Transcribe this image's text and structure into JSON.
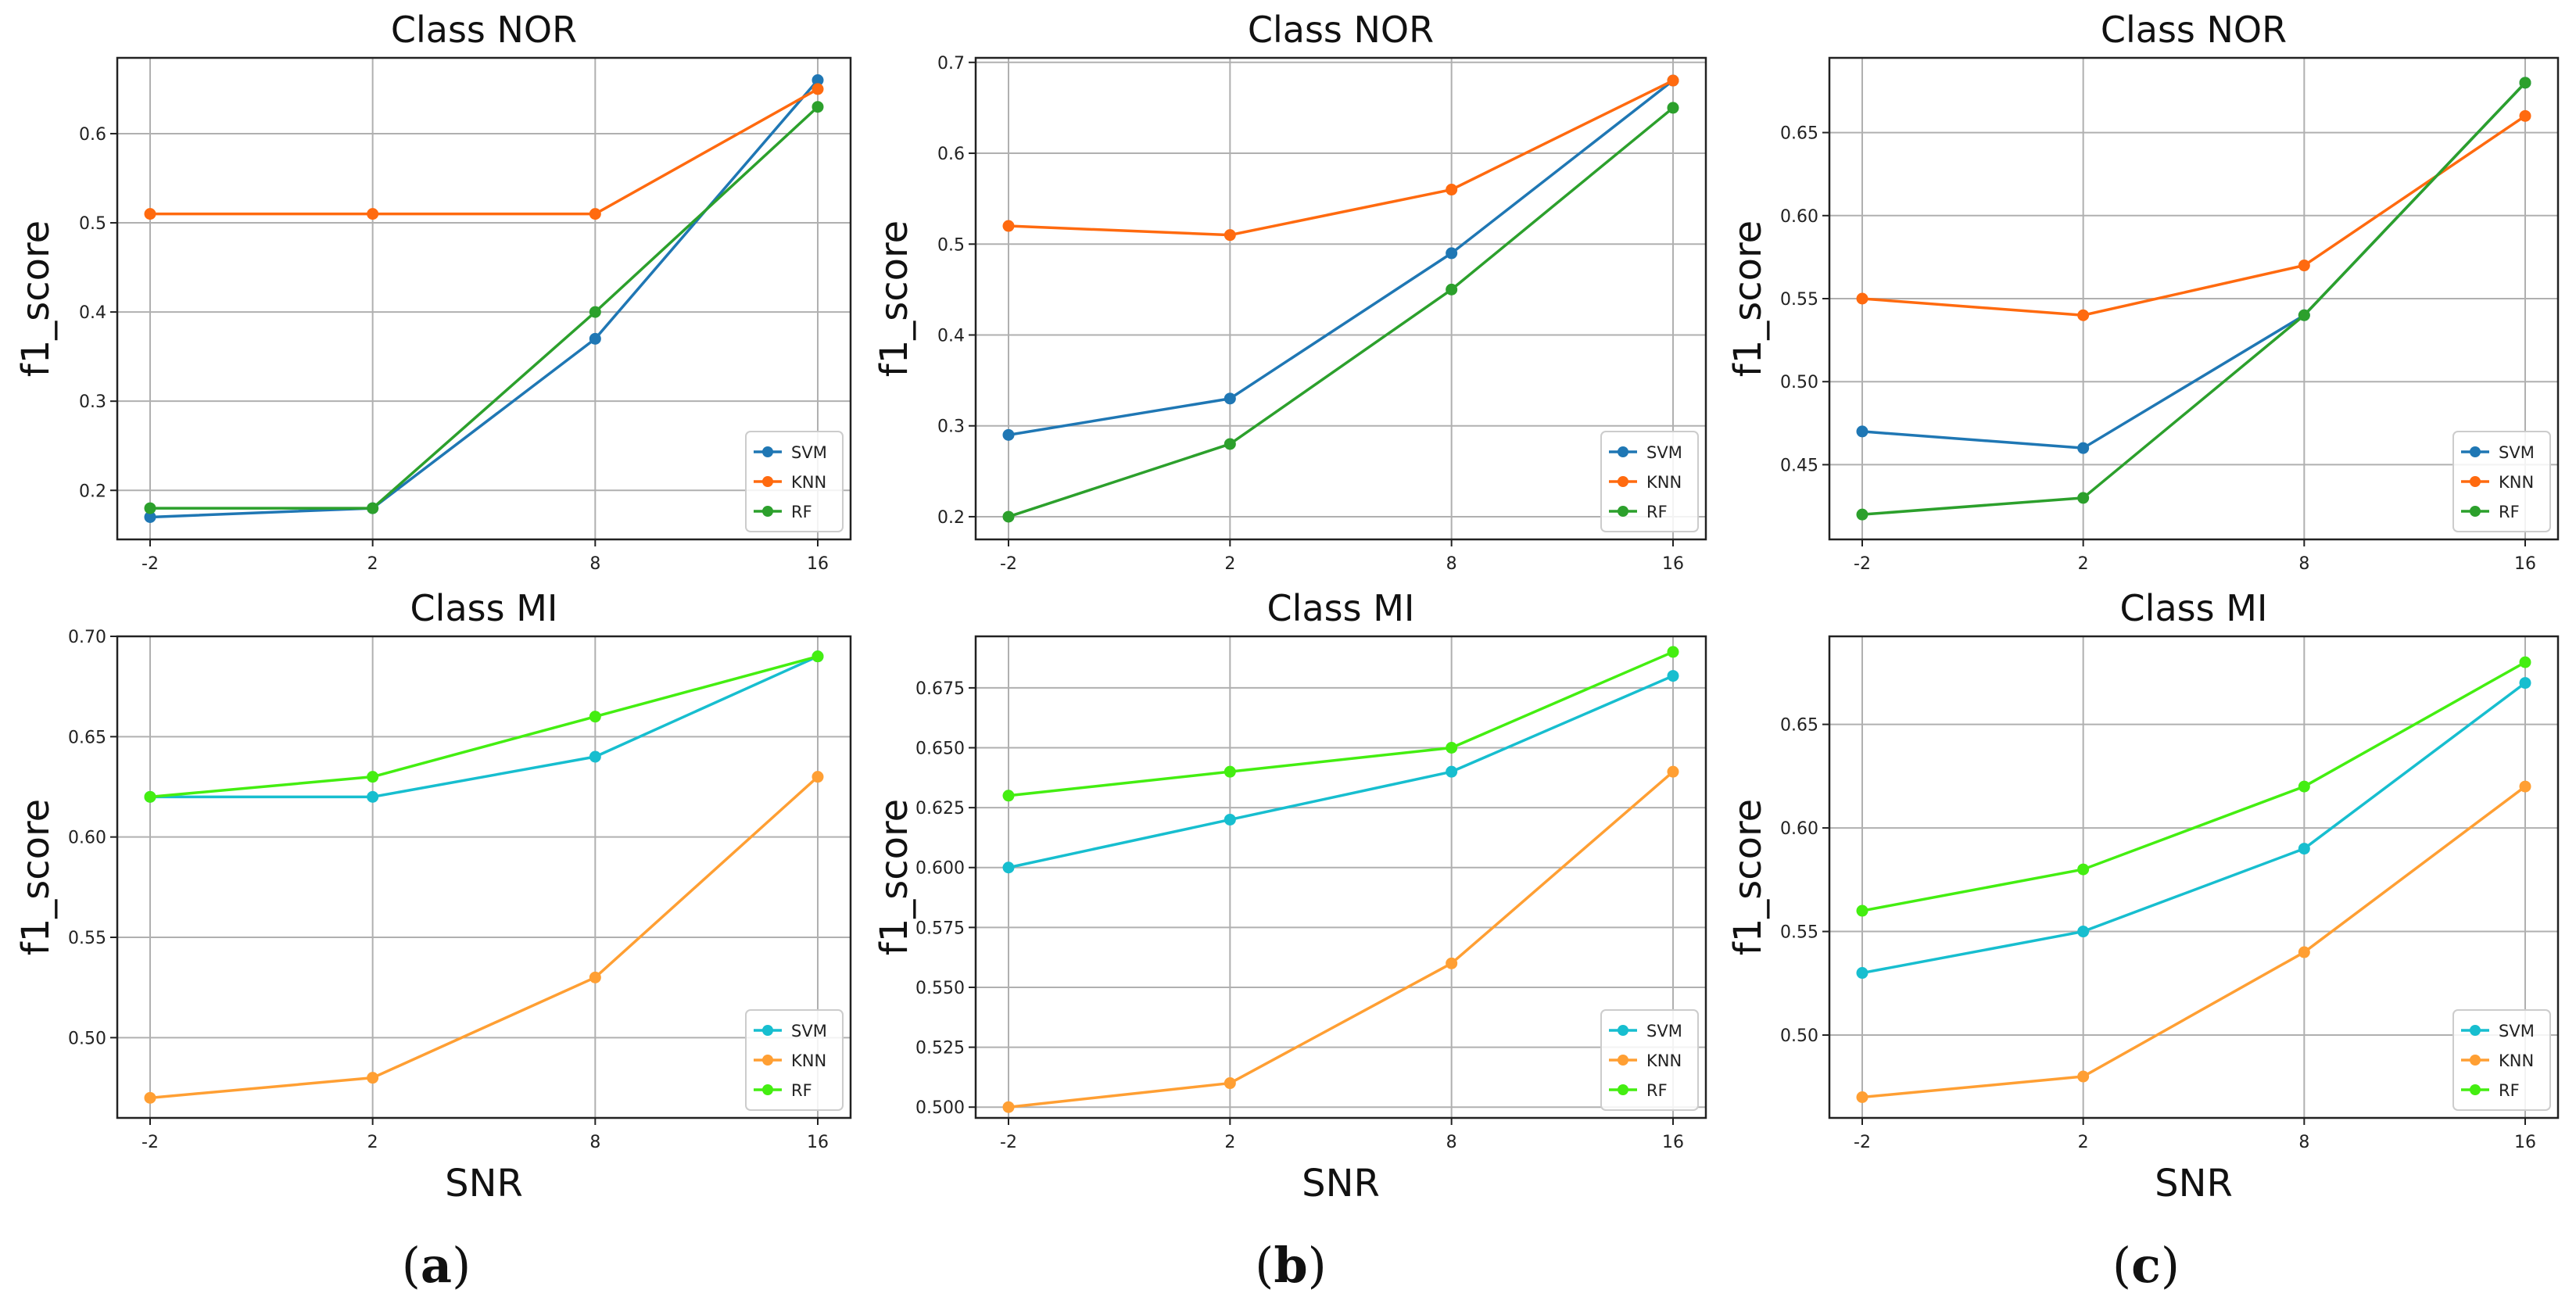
{
  "chart_data": [
    {
      "type": "line",
      "title": "Class NOR",
      "xlabel": "",
      "ylabel": "f1_score",
      "x": [
        -2,
        2,
        8,
        16
      ],
      "x_tick_labels": [
        "-2",
        "2",
        "8",
        "16"
      ],
      "ylim": [
        0.145,
        0.685
      ],
      "y_ticks": [
        0.2,
        0.3,
        0.4,
        0.5,
        0.6
      ],
      "y_tick_labels": [
        "0.2",
        "0.3",
        "0.4",
        "0.5",
        "0.6"
      ],
      "grid": true,
      "legend": "bottom-right",
      "series": [
        {
          "name": "SVM",
          "color": "#1f77b4",
          "values": [
            0.17,
            0.18,
            0.37,
            0.66
          ]
        },
        {
          "name": "KNN",
          "color": "#ff6a0f",
          "values": [
            0.51,
            0.51,
            0.51,
            0.65
          ]
        },
        {
          "name": "RF",
          "color": "#2ca02c",
          "values": [
            0.18,
            0.18,
            0.4,
            0.63
          ]
        }
      ]
    },
    {
      "type": "line",
      "title": "Class NOR",
      "xlabel": "",
      "ylabel": "f1_score",
      "x": [
        -2,
        2,
        8,
        16
      ],
      "x_tick_labels": [
        "-2",
        "2",
        "8",
        "16"
      ],
      "ylim": [
        0.175,
        0.705
      ],
      "y_ticks": [
        0.2,
        0.3,
        0.4,
        0.5,
        0.6,
        0.7
      ],
      "y_tick_labels": [
        "0.2",
        "0.3",
        "0.4",
        "0.5",
        "0.6",
        "0.7"
      ],
      "grid": true,
      "legend": "bottom-right",
      "series": [
        {
          "name": "SVM",
          "color": "#1f77b4",
          "values": [
            0.29,
            0.33,
            0.49,
            0.68
          ]
        },
        {
          "name": "KNN",
          "color": "#ff6a0f",
          "values": [
            0.52,
            0.51,
            0.56,
            0.68
          ]
        },
        {
          "name": "RF",
          "color": "#2ca02c",
          "values": [
            0.2,
            0.28,
            0.45,
            0.65
          ]
        }
      ]
    },
    {
      "type": "line",
      "title": "Class NOR",
      "xlabel": "",
      "ylabel": "f1_score",
      "x": [
        -2,
        2,
        8,
        16
      ],
      "x_tick_labels": [
        "-2",
        "2",
        "8",
        "16"
      ],
      "ylim": [
        0.405,
        0.695
      ],
      "y_ticks": [
        0.45,
        0.5,
        0.55,
        0.6,
        0.65
      ],
      "y_tick_labels": [
        "0.45",
        "0.50",
        "0.55",
        "0.60",
        "0.65"
      ],
      "grid": true,
      "legend": "bottom-right",
      "series": [
        {
          "name": "SVM",
          "color": "#1f77b4",
          "values": [
            0.47,
            0.46,
            0.54,
            0.68
          ]
        },
        {
          "name": "KNN",
          "color": "#ff6a0f",
          "values": [
            0.55,
            0.54,
            0.57,
            0.66
          ]
        },
        {
          "name": "RF",
          "color": "#2ca02c",
          "values": [
            0.42,
            0.43,
            0.54,
            0.68
          ]
        }
      ]
    },
    {
      "type": "line",
      "title": "Class MI",
      "xlabel": "SNR",
      "ylabel": "f1_score",
      "x": [
        -2,
        2,
        8,
        16
      ],
      "x_tick_labels": [
        "-2",
        "2",
        "8",
        "16"
      ],
      "ylim": [
        0.46,
        0.7
      ],
      "y_ticks": [
        0.5,
        0.55,
        0.6,
        0.65,
        0.7
      ],
      "y_tick_labels": [
        "0.50",
        "0.55",
        "0.60",
        "0.65",
        "0.70"
      ],
      "grid": true,
      "legend": "bottom-right",
      "series": [
        {
          "name": "SVM",
          "color": "#17becf",
          "values": [
            0.62,
            0.62,
            0.64,
            0.69
          ]
        },
        {
          "name": "KNN",
          "color": "#ff9f33",
          "values": [
            0.47,
            0.48,
            0.53,
            0.63
          ]
        },
        {
          "name": "RF",
          "color": "#44ee11",
          "values": [
            0.62,
            0.63,
            0.66,
            0.69
          ]
        }
      ]
    },
    {
      "type": "line",
      "title": "Class MI",
      "xlabel": "SNR",
      "ylabel": "f1_score",
      "x": [
        -2,
        2,
        8,
        16
      ],
      "x_tick_labels": [
        "-2",
        "2",
        "8",
        "16"
      ],
      "ylim": [
        0.4955,
        0.6965
      ],
      "y_ticks": [
        0.5,
        0.525,
        0.55,
        0.575,
        0.6,
        0.625,
        0.65,
        0.675
      ],
      "y_tick_labels": [
        "0.500",
        "0.525",
        "0.550",
        "0.575",
        "0.600",
        "0.625",
        "0.650",
        "0.675"
      ],
      "grid": true,
      "legend": "bottom-right",
      "series": [
        {
          "name": "SVM",
          "color": "#17becf",
          "values": [
            0.6,
            0.62,
            0.64,
            0.68
          ]
        },
        {
          "name": "KNN",
          "color": "#ff9f33",
          "values": [
            0.5,
            0.51,
            0.56,
            0.64
          ]
        },
        {
          "name": "RF",
          "color": "#44ee11",
          "values": [
            0.63,
            0.64,
            0.65,
            0.69
          ]
        }
      ]
    },
    {
      "type": "line",
      "title": "Class MI",
      "xlabel": "SNR",
      "ylabel": "f1_score",
      "x": [
        -2,
        2,
        8,
        16
      ],
      "x_tick_labels": [
        "-2",
        "2",
        "8",
        "16"
      ],
      "ylim": [
        0.46,
        0.6925
      ],
      "y_ticks": [
        0.5,
        0.55,
        0.6,
        0.65
      ],
      "y_tick_labels": [
        "0.50",
        "0.55",
        "0.60",
        "0.65"
      ],
      "grid": true,
      "legend": "bottom-right",
      "series": [
        {
          "name": "SVM",
          "color": "#17becf",
          "values": [
            0.53,
            0.55,
            0.59,
            0.67
          ]
        },
        {
          "name": "KNN",
          "color": "#ff9f33",
          "values": [
            0.47,
            0.48,
            0.54,
            0.62
          ]
        },
        {
          "name": "RF",
          "color": "#44ee11",
          "values": [
            0.56,
            0.58,
            0.62,
            0.68
          ]
        }
      ]
    }
  ],
  "panel_labels": [
    {
      "open": "(",
      "letter": "a",
      "close": ")"
    },
    {
      "open": "(",
      "letter": "b",
      "close": ")"
    },
    {
      "open": "(",
      "letter": "c",
      "close": ")"
    }
  ]
}
